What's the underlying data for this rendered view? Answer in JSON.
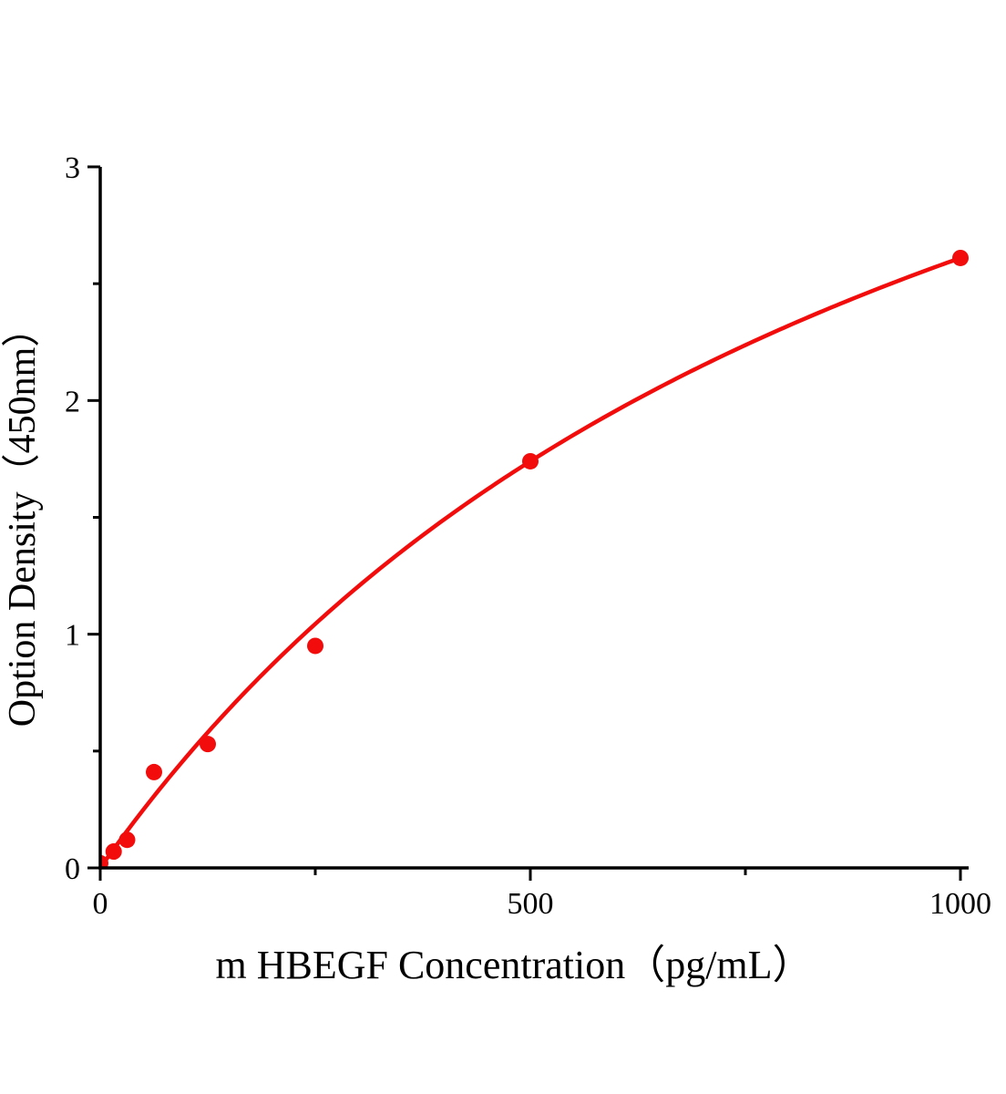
{
  "figure": {
    "background_color": "#ffffff"
  },
  "chart_data": {
    "type": "scatter",
    "title": "",
    "xlabel": "m HBEGF Concentration（pg/mL）",
    "ylabel": "Option Density（450nm）",
    "xlim": [
      0,
      1000
    ],
    "ylim": [
      0,
      3
    ],
    "x_major_ticks": [
      0,
      500,
      1000
    ],
    "x_minor_ticks": [
      250,
      750
    ],
    "y_major_ticks": [
      0,
      1,
      2,
      3
    ],
    "y_minor_ticks": [
      0.5,
      1.5,
      2.5
    ],
    "grid": false,
    "legend": false,
    "axis_color": "#000000",
    "series_color": "#f20c0c",
    "points": [
      {
        "x": 0,
        "y": 0.02
      },
      {
        "x": 15.6,
        "y": 0.07
      },
      {
        "x": 31.25,
        "y": 0.12
      },
      {
        "x": 62.5,
        "y": 0.41
      },
      {
        "x": 125,
        "y": 0.53
      },
      {
        "x": 250,
        "y": 0.95
      },
      {
        "x": 500,
        "y": 1.74
      },
      {
        "x": 1000,
        "y": 2.61
      }
    ],
    "fit_curve": {
      "model": "y = a*x / (1 + b*x)",
      "a": 0.00522,
      "b": 0.001,
      "x_range": [
        0,
        1000
      ]
    }
  }
}
